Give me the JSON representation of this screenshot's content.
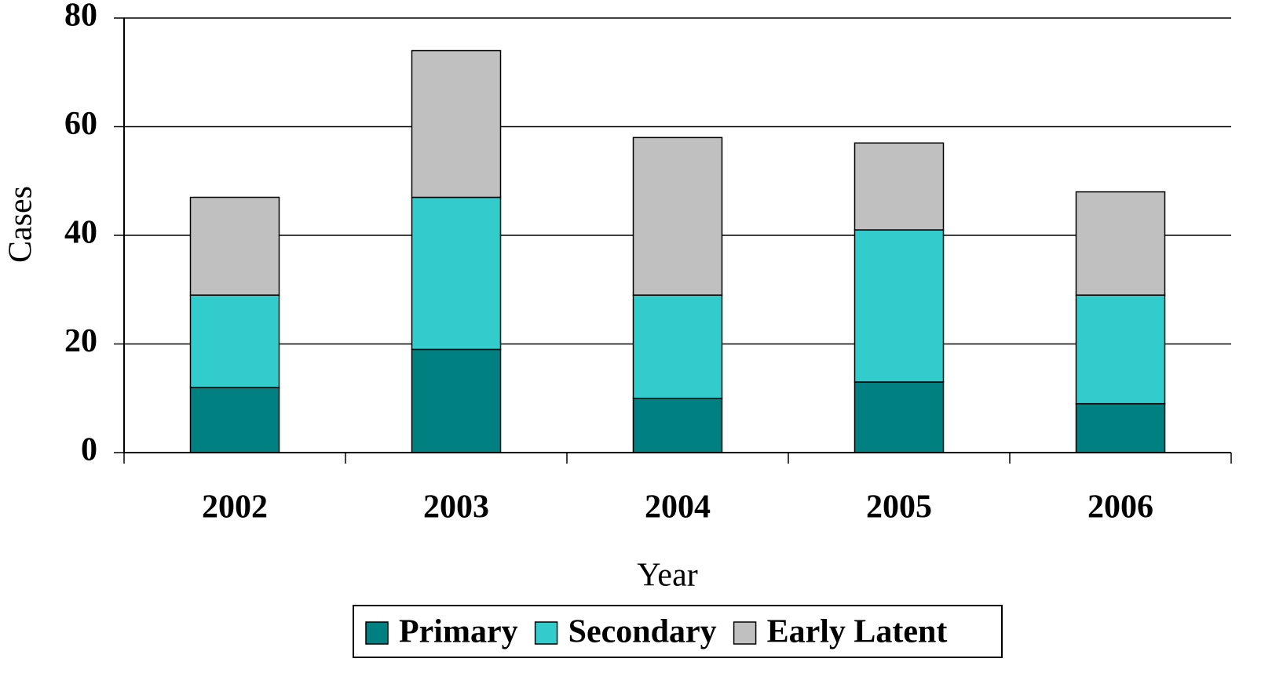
{
  "chart_data": {
    "type": "stacked_bar",
    "x_label": "Year",
    "y_label": "Cases",
    "categories": [
      "2002",
      "2003",
      "2004",
      "2005",
      "2006"
    ],
    "series": [
      {
        "name": "Primary",
        "color": "#008080",
        "values": [
          12,
          19,
          10,
          13,
          9
        ]
      },
      {
        "name": "Secondary",
        "color": "#33cccc",
        "values": [
          17,
          28,
          19,
          28,
          20
        ]
      },
      {
        "name": "Early Latent",
        "color": "#c0c0c0",
        "values": [
          18,
          27,
          29,
          16,
          19
        ]
      }
    ],
    "ylim": [
      0,
      80
    ],
    "yticks": [
      0,
      20,
      40,
      60,
      80
    ],
    "grid": true,
    "legend": "bottom"
  }
}
